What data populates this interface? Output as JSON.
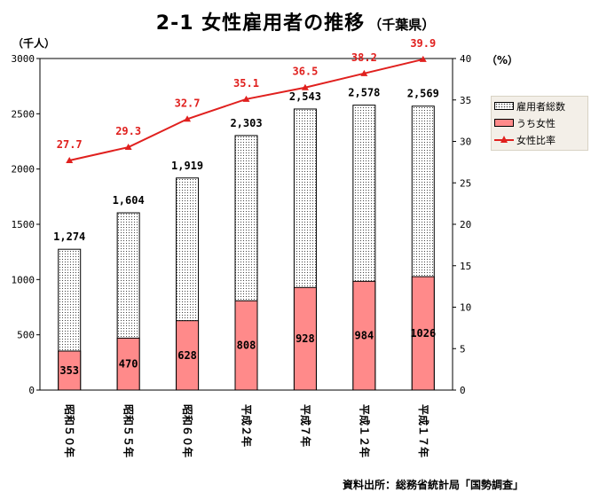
{
  "header": {
    "title": "2-1 女性雇用者の推移",
    "subtitle": "（千葉県）"
  },
  "units": {
    "left": "（千人）",
    "right": "（%）"
  },
  "legend": {
    "total": "雇用者総数",
    "female": "うち女性",
    "ratio": "女性比率"
  },
  "source": "資料出所：総務省統計局「国勢調査」",
  "colors": {
    "female": "#ff8a8a",
    "ratio": "#e0201e"
  },
  "chart_data": {
    "type": "bar",
    "title": "2-1 女性雇用者の推移（千葉県）",
    "categories": [
      "昭和５０年",
      "昭和５５年",
      "昭和６０年",
      "平成２年",
      "平成７年",
      "平成１２年",
      "平成１７年"
    ],
    "series": [
      {
        "name": "雇用者総数",
        "kind": "bar",
        "values": [
          1274,
          1604,
          1919,
          2303,
          2543,
          2578,
          2569
        ],
        "labels": [
          "1,274",
          "1,604",
          "1,919",
          "2,303",
          "2,543",
          "2,578",
          "2,569"
        ]
      },
      {
        "name": "うち女性",
        "kind": "bar",
        "values": [
          353,
          470,
          628,
          808,
          928,
          984,
          1026
        ]
      },
      {
        "name": "女性比率",
        "kind": "line",
        "axis": "right",
        "values": [
          27.7,
          29.3,
          32.7,
          35.1,
          36.5,
          38.2,
          39.9
        ]
      }
    ],
    "y_left": {
      "label": "千人",
      "ylim": [
        0,
        3000
      ],
      "ticks": [
        0,
        500,
        1000,
        1500,
        2000,
        2500,
        3000
      ]
    },
    "y_right": {
      "label": "%",
      "ylim": [
        0,
        40
      ],
      "ticks": [
        0,
        5,
        10,
        15,
        20,
        25,
        30,
        35,
        40
      ]
    },
    "legend_position": "right",
    "grid": false
  }
}
